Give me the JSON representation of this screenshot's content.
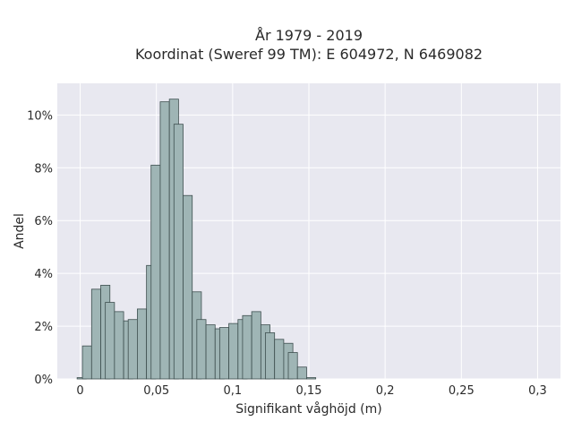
{
  "chart_data": {
    "type": "bar",
    "title_line1": "År 1979 - 2019",
    "title_line2": "Koordinat (Sweref 99 TM): E 604972, N 6469082",
    "xlabel": "Signifikant våghöjd (m)",
    "ylabel": "Andel",
    "xlim": [
      -0.015,
      0.315
    ],
    "ylim": [
      0,
      11.2
    ],
    "bar_width": 0.006,
    "x_ticks": [
      0,
      0.05,
      0.1,
      0.15,
      0.2,
      0.25,
      0.3
    ],
    "x_tick_labels": [
      "0",
      "0,05",
      "0,1",
      "0,15",
      "0,2",
      "0,25",
      "0,3"
    ],
    "y_ticks": [
      0,
      2,
      4,
      6,
      8,
      10
    ],
    "y_tick_labels": [
      "0%",
      "2%",
      "4%",
      "6%",
      "8%",
      "10%"
    ],
    "grid": true,
    "colors": {
      "bar_fill": "#9fb5b5",
      "bar_edge": "#3e4f4f",
      "plot_bg": "#e8e8f0",
      "grid": "#ffffff"
    },
    "bars": [
      {
        "x": 0.001,
        "value": 0.05
      },
      {
        "x": 0.0045,
        "value": 1.25
      },
      {
        "x": 0.0105,
        "value": 3.4
      },
      {
        "x": 0.0165,
        "value": 3.55
      },
      {
        "x": 0.0195,
        "value": 2.9
      },
      {
        "x": 0.0255,
        "value": 2.55
      },
      {
        "x": 0.0315,
        "value": 2.2
      },
      {
        "x": 0.0345,
        "value": 2.25
      },
      {
        "x": 0.0405,
        "value": 2.65
      },
      {
        "x": 0.0465,
        "value": 4.3
      },
      {
        "x": 0.0495,
        "value": 8.1
      },
      {
        "x": 0.0555,
        "value": 10.5
      },
      {
        "x": 0.0615,
        "value": 10.6
      },
      {
        "x": 0.0645,
        "value": 9.65
      },
      {
        "x": 0.0705,
        "value": 6.95
      },
      {
        "x": 0.0765,
        "value": 3.3
      },
      {
        "x": 0.0795,
        "value": 2.25
      },
      {
        "x": 0.0855,
        "value": 2.05
      },
      {
        "x": 0.0915,
        "value": 1.9
      },
      {
        "x": 0.0945,
        "value": 1.95
      },
      {
        "x": 0.1005,
        "value": 2.1
      },
      {
        "x": 0.1065,
        "value": 2.25
      },
      {
        "x": 0.1095,
        "value": 2.4
      },
      {
        "x": 0.1155,
        "value": 2.55
      },
      {
        "x": 0.1215,
        "value": 2.05
      },
      {
        "x": 0.1245,
        "value": 1.75
      },
      {
        "x": 0.1305,
        "value": 1.5
      },
      {
        "x": 0.1365,
        "value": 1.35
      },
      {
        "x": 0.1395,
        "value": 1.0
      },
      {
        "x": 0.1455,
        "value": 0.45
      },
      {
        "x": 0.1515,
        "value": 0.05
      }
    ]
  }
}
